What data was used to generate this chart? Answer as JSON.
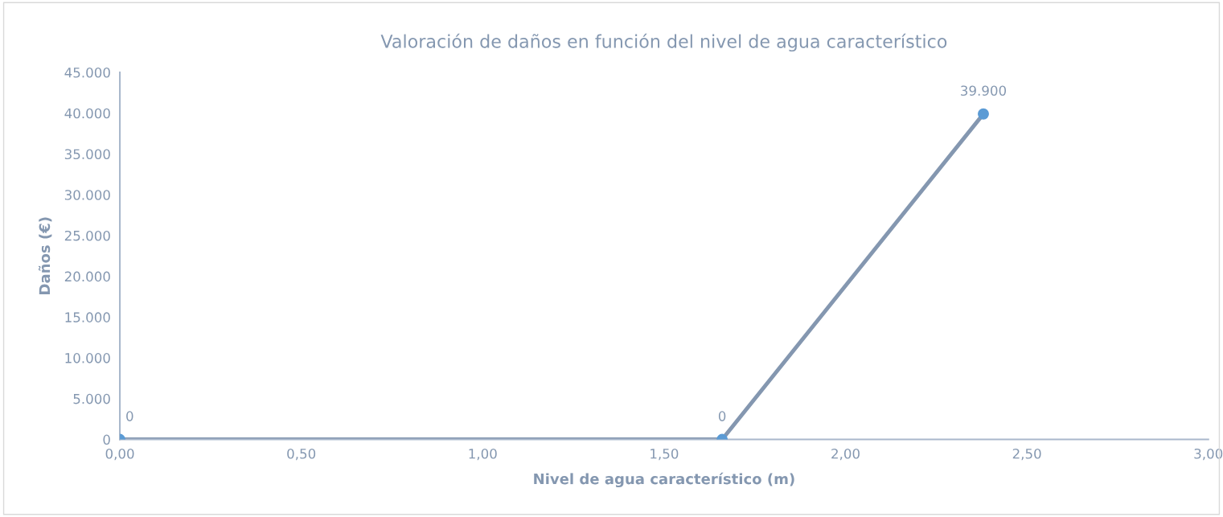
{
  "chart_data": {
    "type": "line",
    "title": "Valoración de daños en función del nivel de agua característico",
    "xlabel": "Nivel de agua característico (m)",
    "ylabel": "Daños (€)",
    "x": [
      0,
      1.66,
      2.38
    ],
    "series": [
      {
        "color": "#8497b0",
        "colors": [
          "#5b9bd5",
          "#5b9bd5",
          "#5b9bd5"
        ],
        "values": [
          0,
          0,
          39900
        ],
        "value_labels": [
          "0",
          "0",
          "39.900"
        ]
      }
    ],
    "xlim": [
      0,
      3
    ],
    "ylim": [
      0,
      45000
    ],
    "xticks": [
      {
        "value": 0,
        "label": "0,00"
      },
      {
        "value": 0.5,
        "label": "0,50"
      },
      {
        "value": 1,
        "label": "1,00"
      },
      {
        "value": 1.5,
        "label": "1,50"
      },
      {
        "value": 2,
        "label": "2,00"
      },
      {
        "value": 2.5,
        "label": "2,50"
      },
      {
        "value": 3,
        "label": "3,00"
      }
    ],
    "yticks": [
      0,
      {
        "value": 5000,
        "label": "5.000"
      },
      {
        "value": 10000,
        "label": "10.000"
      },
      {
        "value": 15000,
        "label": "15.000"
      },
      {
        "value": 20000,
        "label": "20.000"
      },
      {
        "value": 25000,
        "label": "25.000"
      },
      {
        "value": 30000,
        "label": "30.000"
      },
      {
        "value": 35000,
        "label": "35.000"
      },
      {
        "value": 40000,
        "label": "40.000"
      },
      {
        "value": 45000,
        "label": "45.000"
      }
    ],
    "grid": false,
    "legend": false,
    "marker": "circle",
    "line_style": "solid"
  }
}
